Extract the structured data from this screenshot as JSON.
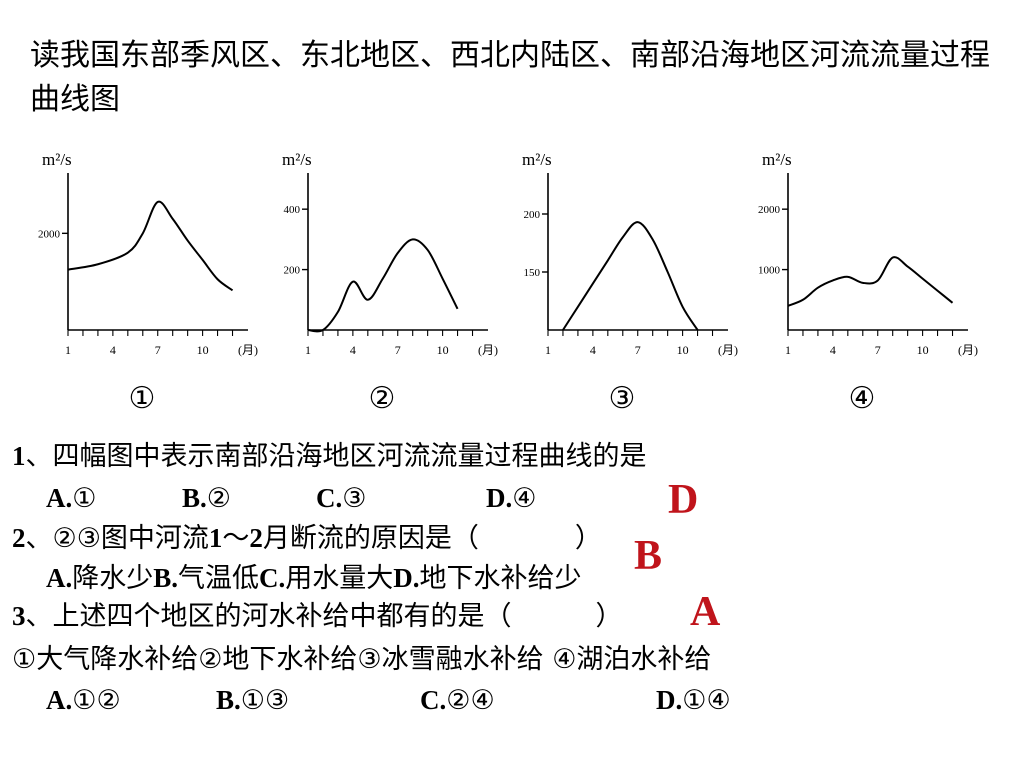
{
  "title": "读我国东部季风区、东北地区、西北内陆区、南部沿海地区河流流量过程曲线图",
  "chart_data": [
    {
      "type": "line",
      "unit_label": "m²/s",
      "x_unit": "(月)",
      "x_ticks": [
        1,
        4,
        7,
        10
      ],
      "y_ticks": [
        2000
      ],
      "ylim": [
        0,
        3000
      ],
      "number_label": "①",
      "series": [
        {
          "x": [
            1,
            3,
            5,
            6,
            7,
            8,
            9,
            10,
            11,
            12
          ],
          "y": [
            1250,
            1360,
            1600,
            2000,
            2650,
            2300,
            1850,
            1450,
            1050,
            820
          ]
        }
      ]
    },
    {
      "type": "line",
      "unit_label": "m²/s",
      "x_unit": "(月)",
      "x_ticks": [
        1,
        4,
        7,
        10
      ],
      "y_ticks": [
        200,
        400
      ],
      "ylim": [
        0,
        480
      ],
      "number_label": "②",
      "series": [
        {
          "x": [
            1,
            2,
            3,
            4,
            5,
            6,
            7,
            8,
            9,
            10,
            11
          ],
          "y": [
            0,
            0,
            60,
            160,
            100,
            170,
            255,
            300,
            265,
            170,
            70
          ]
        }
      ]
    },
    {
      "type": "line",
      "unit_label": "m²/s",
      "x_unit": "(月)",
      "x_ticks": [
        1,
        4,
        7,
        10
      ],
      "y_ticks": [
        150,
        200
      ],
      "ylim": [
        100,
        225
      ],
      "number_label": "③",
      "series": [
        {
          "x": [
            2,
            3,
            4,
            5,
            6,
            7,
            8,
            9,
            10,
            11
          ],
          "y": [
            100,
            120,
            140,
            160,
            180,
            193,
            178,
            150,
            120,
            100
          ]
        }
      ]
    },
    {
      "type": "line",
      "unit_label": "m²/s",
      "x_unit": "(月)",
      "x_ticks": [
        1,
        4,
        7,
        10
      ],
      "y_ticks": [
        1000,
        2000
      ],
      "ylim": [
        0,
        2400
      ],
      "number_label": "④",
      "series": [
        {
          "x": [
            1,
            2,
            3,
            4,
            5,
            6,
            7,
            8,
            9,
            10,
            11,
            12
          ],
          "y": [
            400,
            500,
            700,
            820,
            880,
            780,
            820,
            1200,
            1050,
            850,
            650,
            450
          ]
        }
      ]
    }
  ],
  "questions": [
    {
      "num": "1",
      "text": "、四幅图中表示南部沿海地区河流流量过程曲线的是"
    },
    {
      "num": "2",
      "text": "、②③图中河流",
      "range": "1",
      "sep": "～",
      "range2": "2",
      "text2": "月断流的原因是（",
      "close": "）"
    },
    {
      "num": "3",
      "text": "、上述四个地区的河水补给中都有的是（",
      "close": "）"
    },
    {
      "text": "①大气降水补给②地下水补给③冰雪融水补给 ④湖泊水补给"
    }
  ],
  "options": {
    "q1": [
      {
        "key": "A.",
        "val": "①"
      },
      {
        "key": "B.",
        "val": "②"
      },
      {
        "key": "C.",
        "val": "③"
      },
      {
        "key": "D.",
        "val": "④"
      }
    ],
    "q2": [
      {
        "key": "A.",
        "val": "降水少"
      },
      {
        "key": "B.",
        "val": "气温低"
      },
      {
        "key": "C.",
        "val": "用水量大"
      },
      {
        "key": "D.",
        "val": "地下水补给少"
      }
    ],
    "q3": [
      {
        "key": "A.",
        "val": "①②"
      },
      {
        "key": "B.",
        "val": "①③"
      },
      {
        "key": "C.",
        "val": "②④"
      },
      {
        "key": "D.",
        "val": "①④"
      }
    ]
  },
  "answers": {
    "q1": "D",
    "q2": "B",
    "q3": "A"
  },
  "colors": {
    "answer": "#c0141b",
    "ink": "#000000"
  }
}
